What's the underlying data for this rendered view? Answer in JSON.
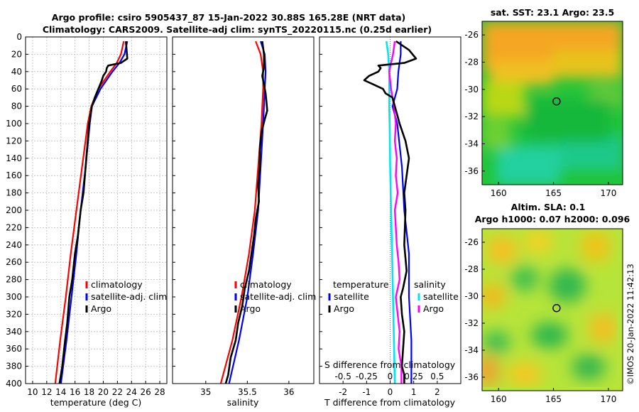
{
  "header": {
    "line1": "Argo profile: csiro 5905437_87 15-Jan-2022 30.88S 165.28E (NRT data)",
    "line2": "Climatology: CARS2009. Satellite-adj clim: synTS_20220115.nc (0.25d earlier)"
  },
  "colors": {
    "climatology": "#ff0000",
    "satellite": "#0000ff",
    "argo": "#000000",
    "satellite_salinity": "#00e5ee",
    "argo_salinity": "#ff00ff"
  },
  "chart_data": [
    {
      "type": "line",
      "name": "temperature",
      "xlabel": "temperature (deg C)",
      "ylabel": "",
      "xlim": [
        9,
        29
      ],
      "ylim": [
        0,
        400
      ],
      "x_ticks": [
        "10",
        "12",
        "14",
        "16",
        "18",
        "20",
        "22",
        "24",
        "26",
        "28"
      ],
      "y_ticks": [
        "0",
        "20",
        "40",
        "60",
        "80",
        "100",
        "120",
        "140",
        "160",
        "180",
        "200",
        "220",
        "240",
        "260",
        "280",
        "300",
        "320",
        "340",
        "360",
        "380",
        "400"
      ],
      "grid": true,
      "legend": [
        "climatology",
        "satellite-adj. clim",
        "Argo"
      ],
      "series": [
        {
          "name": "climatology",
          "depth": [
            5,
            20,
            30,
            40,
            60,
            80,
            100,
            150,
            200,
            250,
            300,
            350,
            400
          ],
          "values": [
            22.9,
            22.5,
            21.9,
            21.0,
            19.3,
            18.3,
            17.8,
            17.0,
            16.2,
            15.4,
            14.7,
            13.9,
            13.2
          ]
        },
        {
          "name": "satellite-adj. clim",
          "depth": [
            5,
            20,
            30,
            40,
            60,
            80,
            100,
            150,
            200,
            250,
            300,
            350,
            400
          ],
          "values": [
            23.4,
            23.0,
            22.3,
            21.3,
            19.6,
            18.4,
            18.1,
            17.5,
            16.8,
            16.2,
            15.5,
            14.8,
            14.0
          ]
        },
        {
          "name": "Argo",
          "depth": [
            5,
            15,
            25,
            30,
            33,
            36,
            40,
            45,
            50,
            60,
            70,
            80,
            100,
            120,
            150,
            180,
            200,
            230,
            250,
            280,
            300,
            330,
            350,
            380,
            400
          ],
          "values": [
            23.2,
            23.3,
            23.4,
            22.5,
            20.7,
            20.5,
            20.4,
            20.0,
            19.8,
            19.3,
            18.8,
            18.4,
            18.0,
            17.8,
            17.5,
            17.2,
            16.8,
            16.4,
            16.0,
            15.6,
            15.2,
            14.9,
            14.6,
            14.2,
            13.8
          ]
        }
      ]
    },
    {
      "type": "line",
      "name": "salinity",
      "xlabel": "salinity",
      "ylabel": "",
      "xlim": [
        34.6,
        36.3
      ],
      "ylim": [
        0,
        400
      ],
      "x_ticks": [
        "35",
        "35.5",
        "36"
      ],
      "grid": false,
      "legend": [
        "climatology",
        "satellite-adj. clim",
        "Argo"
      ],
      "series": [
        {
          "name": "climatology",
          "depth": [
            5,
            20,
            40,
            60,
            80,
            100,
            150,
            200,
            250,
            300,
            350,
            400
          ],
          "values": [
            35.6,
            35.66,
            35.69,
            35.69,
            35.68,
            35.67,
            35.63,
            35.59,
            35.52,
            35.43,
            35.32,
            35.18
          ]
        },
        {
          "name": "satellite-adj. clim",
          "depth": [
            5,
            20,
            40,
            60,
            80,
            100,
            150,
            200,
            250,
            300,
            350,
            400
          ],
          "values": [
            35.66,
            35.71,
            35.72,
            35.71,
            35.7,
            35.69,
            35.66,
            35.63,
            35.57,
            35.5,
            35.4,
            35.28
          ]
        },
        {
          "name": "Argo",
          "depth": [
            5,
            20,
            35,
            45,
            55,
            65,
            75,
            85,
            95,
            110,
            130,
            150,
            170,
            190,
            210,
            230,
            250,
            270,
            290,
            310,
            330,
            350,
            370,
            390,
            400
          ],
          "values": [
            35.68,
            35.7,
            35.7,
            35.68,
            35.7,
            35.72,
            35.73,
            35.74,
            35.71,
            35.67,
            35.65,
            35.65,
            35.63,
            35.64,
            35.6,
            35.58,
            35.55,
            35.52,
            35.47,
            35.44,
            35.39,
            35.36,
            35.3,
            35.27,
            35.24
          ]
        }
      ]
    },
    {
      "type": "line",
      "name": "difference",
      "xlabel": "T difference from climatology",
      "ylabel": "",
      "xlim": [
        -3,
        3
      ],
      "ylim": [
        0,
        400
      ],
      "x_ticks": [
        "-2",
        "-1",
        "0",
        "1",
        "2"
      ],
      "s_axis_label": "S difference from climatology",
      "s_ticks": [
        "-0.5",
        "-0.25",
        "0",
        "0.25",
        "0.5"
      ],
      "grid": false,
      "legend_title_left": "temperature",
      "legend_title_right": "salinity",
      "legend_left": [
        "satellite",
        "Argo"
      ],
      "legend_right": [
        "satellite",
        "Argo"
      ],
      "series": [
        {
          "name": "T satellite",
          "depth": [
            5,
            20,
            40,
            60,
            80,
            100,
            150,
            200,
            250,
            300,
            350,
            400
          ],
          "values": [
            0.45,
            0.45,
            0.35,
            0.3,
            0.1,
            0.3,
            0.5,
            0.6,
            0.8,
            0.8,
            0.9,
            0.9
          ]
        },
        {
          "name": "T Argo",
          "depth": [
            5,
            15,
            25,
            30,
            33,
            36,
            40,
            45,
            50,
            55,
            60,
            65,
            70,
            80,
            90,
            100,
            120,
            140,
            160,
            180,
            200,
            240,
            270,
            290,
            300,
            320,
            340,
            360,
            380,
            390,
            400
          ],
          "values": [
            0.25,
            0.8,
            1.1,
            0.6,
            -0.5,
            -0.4,
            -0.5,
            -0.9,
            -1.1,
            -0.7,
            -0.3,
            -0.2,
            0.1,
            0.2,
            0.3,
            0.4,
            0.65,
            0.8,
            0.7,
            0.6,
            0.65,
            0.6,
            0.7,
            0.55,
            0.45,
            0.5,
            0.6,
            0.55,
            0.5,
            0.6,
            0.6
          ]
        },
        {
          "name": "S satellite",
          "depth": [
            5,
            20,
            40,
            60,
            80,
            100,
            150,
            200,
            250,
            300,
            350,
            400
          ],
          "values": [
            -0.04,
            -0.02,
            -0.01,
            -0.01,
            -0.01,
            -0.005,
            0.0,
            0.01,
            0.02,
            0.03,
            0.04,
            0.05
          ]
        },
        {
          "name": "S Argo",
          "depth": [
            5,
            20,
            40,
            60,
            80,
            100,
            120,
            140,
            160,
            180,
            200,
            220,
            240,
            260,
            280,
            300,
            320,
            340,
            360,
            380,
            400
          ],
          "values": [
            0.05,
            0.03,
            -0.01,
            0.01,
            0.04,
            0.06,
            0.05,
            0.07,
            0.06,
            0.08,
            0.05,
            0.06,
            0.07,
            0.09,
            0.1,
            0.06,
            0.08,
            0.1,
            0.09,
            0.12,
            0.12
          ]
        }
      ]
    },
    {
      "type": "heatmap",
      "name": "sst_map",
      "title": "sat. SST: 23.1 Argo: 23.5",
      "xlim": [
        158.5,
        171.3
      ],
      "ylim": [
        -37,
        -25
      ],
      "x_ticks": [
        "160",
        "165",
        "170"
      ],
      "y_ticks": [
        "-26",
        "-28",
        "-30",
        "-32",
        "-34",
        "-36"
      ],
      "marker": {
        "lon": 165.28,
        "lat": -30.88
      }
    },
    {
      "type": "heatmap",
      "name": "sla_map",
      "title": "Altim. SLA: 0.1",
      "subtitle": "Argo h1000: 0.07 h2000: 0.096",
      "xlim": [
        158.5,
        171.3
      ],
      "ylim": [
        -37,
        -25
      ],
      "x_ticks": [
        "160",
        "165",
        "170"
      ],
      "y_ticks": [
        "-26",
        "-28",
        "-30",
        "-32",
        "-34",
        "-36"
      ],
      "marker": {
        "lon": 165.28,
        "lat": -30.88
      }
    }
  ],
  "credit": "©IMOS 20-Jan-2022 11:42:13"
}
